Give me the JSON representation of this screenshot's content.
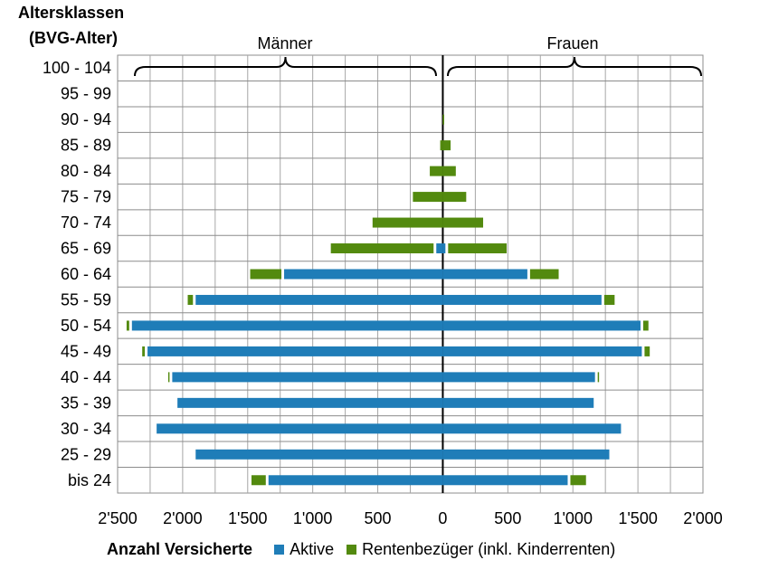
{
  "chart_data": {
    "type": "bar",
    "orientation": "horizontal-population-pyramid",
    "yaxis_title_line1": "Altersklassen",
    "yaxis_title_line2": "(BVG-Alter)",
    "xlabel": "Anzahl Versicherte",
    "group_left": "Männer",
    "group_right": "Frauen",
    "categories": [
      "100 - 104",
      "95 - 99",
      "90 - 94",
      "85 - 89",
      "80 - 84",
      "75 - 79",
      "70 - 74",
      "65 - 69",
      "60 - 64",
      "55 - 59",
      "50 - 54",
      "45 - 49",
      "40 - 44",
      "35 - 39",
      "30 - 34",
      "25 - 29",
      "bis 24"
    ],
    "xlim": [
      -2500,
      2000
    ],
    "x_ticks": [
      -2500,
      -2000,
      -1500,
      -1000,
      -500,
      0,
      500,
      1000,
      1500,
      2000
    ],
    "x_tick_labels": [
      "2'500",
      "2'000",
      "1'500",
      "1'000",
      "500",
      "0",
      "500",
      "1'000",
      "1'500",
      "2'000"
    ],
    "grid": true,
    "legend_position": "bottom",
    "colors": {
      "aktive": "#1f7db8",
      "rentner": "#538a0f"
    },
    "series": [
      {
        "name": "Aktive",
        "group": "Männer",
        "values": [
          0,
          0,
          0,
          0,
          0,
          0,
          0,
          50,
          1220,
          1900,
          2390,
          2270,
          2080,
          2040,
          2200,
          1900,
          1340
        ]
      },
      {
        "name": "Rentenbezüger (inkl. Kinderrenten)",
        "group": "Männer",
        "values": [
          0,
          0,
          0,
          20,
          100,
          230,
          540,
          790,
          240,
          40,
          20,
          20,
          10,
          0,
          0,
          0,
          110
        ]
      },
      {
        "name": "Aktive",
        "group": "Frauen",
        "values": [
          0,
          0,
          0,
          0,
          0,
          0,
          0,
          20,
          650,
          1220,
          1520,
          1530,
          1170,
          1160,
          1370,
          1280,
          960
        ]
      },
      {
        "name": "Rentenbezüger (inkl. Kinderrenten)",
        "group": "Frauen",
        "values": [
          0,
          0,
          5,
          60,
          100,
          180,
          310,
          450,
          220,
          80,
          40,
          40,
          10,
          0,
          0,
          0,
          120
        ]
      }
    ]
  }
}
